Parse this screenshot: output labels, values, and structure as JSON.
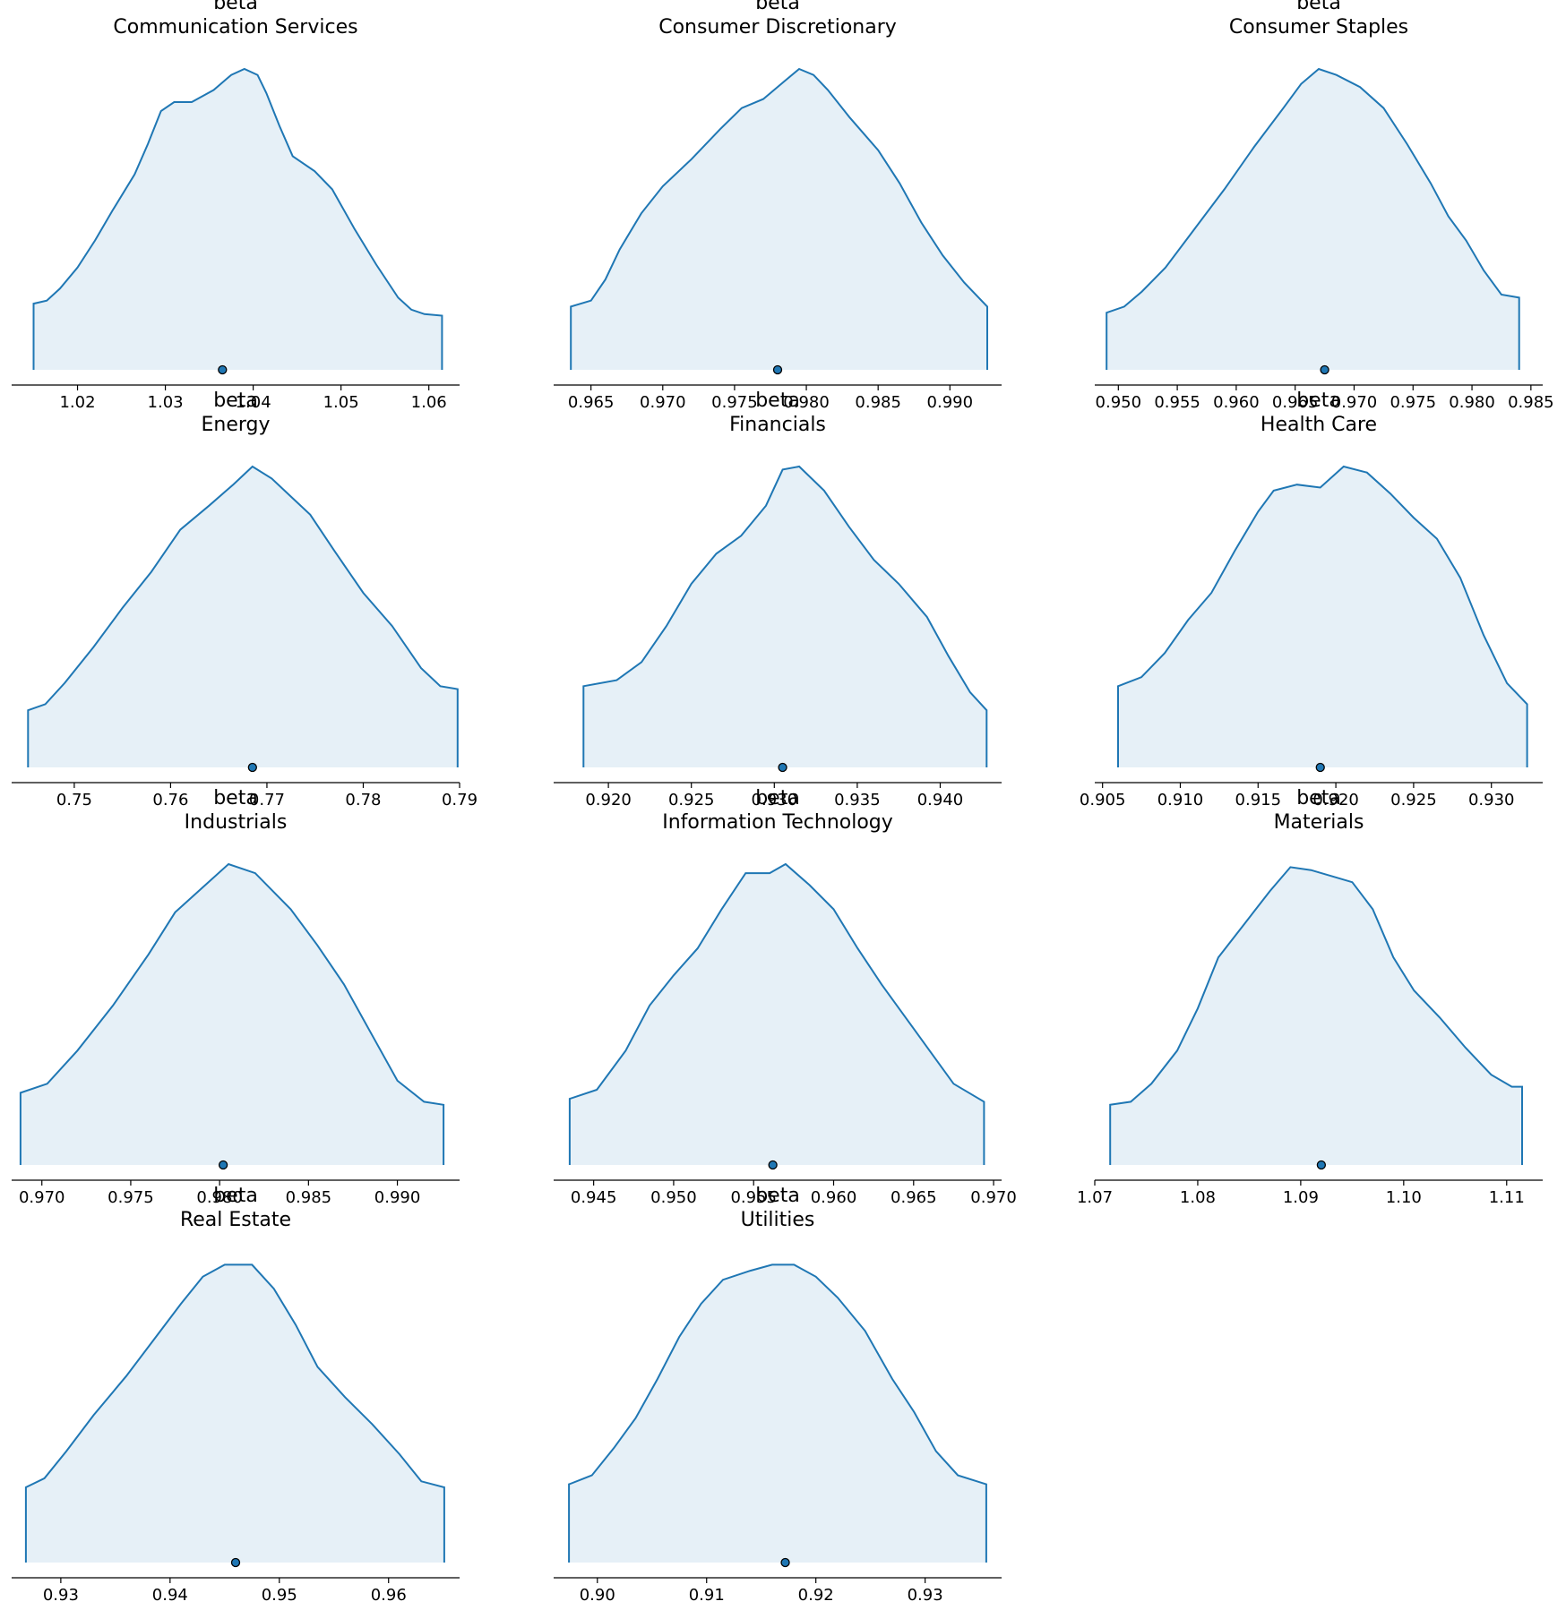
{
  "chart_data": [
    {
      "type": "area",
      "title_line1": "beta",
      "title_line2": "Communication Services",
      "xlim": [
        1.0125,
        1.0635
      ],
      "ticks": [
        1.02,
        1.03,
        1.04,
        1.05,
        1.06
      ],
      "tick_labels": [
        "1.02",
        "1.03",
        "1.04",
        "1.05",
        "1.06"
      ],
      "range": [
        1.015,
        1.0615
      ],
      "mean": 1.0365,
      "x": [
        1.015,
        1.0165,
        1.018,
        1.02,
        1.022,
        1.024,
        1.0265,
        1.028,
        1.0295,
        1.031,
        1.033,
        1.0355,
        1.0375,
        1.039,
        1.0405,
        1.0415,
        1.043,
        1.0445,
        1.047,
        1.049,
        1.0515,
        1.054,
        1.0565,
        1.058,
        1.0595,
        1.0615
      ],
      "y": [
        0.22,
        0.23,
        0.27,
        0.34,
        0.43,
        0.53,
        0.65,
        0.75,
        0.86,
        0.89,
        0.89,
        0.93,
        0.98,
        1.0,
        0.98,
        0.92,
        0.81,
        0.71,
        0.66,
        0.6,
        0.47,
        0.35,
        0.24,
        0.2,
        0.185,
        0.18
      ]
    },
    {
      "type": "area",
      "title_line1": "beta",
      "title_line2": "Consumer Discretionary",
      "xlim": [
        0.9624,
        0.9936
      ],
      "ticks": [
        0.965,
        0.97,
        0.975,
        0.98,
        0.985,
        0.99
      ],
      "tick_labels": [
        "0.965",
        "0.970",
        "0.975",
        "0.980",
        "0.985",
        "0.990"
      ],
      "range": [
        0.9636,
        0.9926
      ],
      "mean": 0.978,
      "x": [
        0.9636,
        0.965,
        0.966,
        0.967,
        0.9685,
        0.97,
        0.972,
        0.974,
        0.9755,
        0.977,
        0.9785,
        0.9795,
        0.9805,
        0.9815,
        0.983,
        0.985,
        0.9865,
        0.988,
        0.9895,
        0.991,
        0.9926
      ],
      "y": [
        0.21,
        0.23,
        0.3,
        0.4,
        0.52,
        0.61,
        0.7,
        0.8,
        0.87,
        0.9,
        0.96,
        1.0,
        0.98,
        0.93,
        0.84,
        0.73,
        0.62,
        0.49,
        0.38,
        0.29,
        0.21
      ]
    },
    {
      "type": "area",
      "title_line1": "beta",
      "title_line2": "Consumer Staples",
      "xlim": [
        0.948,
        0.986
      ],
      "ticks": [
        0.95,
        0.955,
        0.96,
        0.965,
        0.97,
        0.975,
        0.98,
        0.985
      ],
      "tick_labels": [
        "0.950",
        "0.955",
        "0.960",
        "0.965",
        "0.970",
        "0.975",
        "0.980",
        "0.985"
      ],
      "range": [
        0.949,
        0.984
      ],
      "mean": 0.9675,
      "x": [
        0.949,
        0.9505,
        0.952,
        0.954,
        0.9565,
        0.959,
        0.9615,
        0.964,
        0.9655,
        0.967,
        0.9685,
        0.9705,
        0.9725,
        0.9745,
        0.9765,
        0.978,
        0.9795,
        0.981,
        0.9825,
        0.984
      ],
      "y": [
        0.19,
        0.21,
        0.26,
        0.34,
        0.47,
        0.6,
        0.74,
        0.87,
        0.95,
        1.0,
        0.98,
        0.94,
        0.87,
        0.75,
        0.62,
        0.51,
        0.43,
        0.33,
        0.25,
        0.24
      ]
    },
    {
      "type": "area",
      "title_line1": "beta",
      "title_line2": "Energy",
      "xlim": [
        0.7435,
        0.79
      ],
      "ticks": [
        0.75,
        0.76,
        0.77,
        0.78,
        0.79
      ],
      "tick_labels": [
        "0.75",
        "0.76",
        "0.77",
        "0.78",
        "0.79"
      ],
      "range": [
        0.7452,
        0.7898
      ],
      "mean": 0.7685,
      "x": [
        0.7452,
        0.747,
        0.749,
        0.752,
        0.755,
        0.758,
        0.761,
        0.764,
        0.7665,
        0.7685,
        0.7705,
        0.7725,
        0.7745,
        0.777,
        0.78,
        0.783,
        0.786,
        0.788,
        0.7898
      ],
      "y": [
        0.19,
        0.21,
        0.28,
        0.4,
        0.53,
        0.65,
        0.79,
        0.87,
        0.94,
        1.0,
        0.96,
        0.9,
        0.84,
        0.72,
        0.58,
        0.47,
        0.33,
        0.27,
        0.26
      ]
    },
    {
      "type": "area",
      "title_line1": "beta",
      "title_line2": "Financials",
      "xlim": [
        0.9167,
        0.9437
      ],
      "ticks": [
        0.92,
        0.925,
        0.93,
        0.935,
        0.94
      ],
      "tick_labels": [
        "0.920",
        "0.925",
        "0.930",
        "0.935",
        "0.940"
      ],
      "range": [
        0.9185,
        0.9428
      ],
      "mean": 0.9305,
      "x": [
        0.9185,
        0.9205,
        0.922,
        0.9235,
        0.925,
        0.9265,
        0.928,
        0.9295,
        0.9305,
        0.9315,
        0.933,
        0.9345,
        0.936,
        0.9375,
        0.9392,
        0.9405,
        0.9418,
        0.9428
      ],
      "y": [
        0.27,
        0.29,
        0.35,
        0.47,
        0.61,
        0.71,
        0.77,
        0.87,
        0.99,
        1.0,
        0.92,
        0.8,
        0.69,
        0.61,
        0.5,
        0.37,
        0.25,
        0.19
      ]
    },
    {
      "type": "area",
      "title_line1": "beta",
      "title_line2": "Health Care",
      "xlim": [
        0.9045,
        0.9333
      ],
      "ticks": [
        0.905,
        0.91,
        0.915,
        0.92,
        0.925,
        0.93
      ],
      "tick_labels": [
        "0.905",
        "0.910",
        "0.915",
        "0.920",
        "0.925",
        "0.930"
      ],
      "range": [
        0.906,
        0.9323
      ],
      "mean": 0.919,
      "x": [
        0.906,
        0.9075,
        0.909,
        0.9105,
        0.912,
        0.9135,
        0.915,
        0.916,
        0.9175,
        0.919,
        0.9205,
        0.922,
        0.9235,
        0.925,
        0.9265,
        0.928,
        0.9295,
        0.931,
        0.9323
      ],
      "y": [
        0.27,
        0.3,
        0.38,
        0.49,
        0.58,
        0.72,
        0.85,
        0.92,
        0.94,
        0.93,
        1.0,
        0.98,
        0.91,
        0.83,
        0.76,
        0.63,
        0.44,
        0.28,
        0.21
      ]
    },
    {
      "type": "area",
      "title_line1": "beta",
      "title_line2": "Industrials",
      "xlim": [
        0.9683,
        0.9935
      ],
      "ticks": [
        0.97,
        0.975,
        0.98,
        0.985,
        0.99
      ],
      "tick_labels": [
        "0.970",
        "0.975",
        "0.980",
        "0.985",
        "0.990"
      ],
      "range": [
        0.9688,
        0.9926
      ],
      "mean": 0.9802,
      "x": [
        0.9688,
        0.9703,
        0.972,
        0.974,
        0.976,
        0.9775,
        0.979,
        0.9805,
        0.982,
        0.984,
        0.9855,
        0.987,
        0.9885,
        0.99,
        0.9915,
        0.9926
      ],
      "y": [
        0.24,
        0.27,
        0.38,
        0.53,
        0.7,
        0.84,
        0.92,
        1.0,
        0.97,
        0.85,
        0.73,
        0.6,
        0.44,
        0.28,
        0.21,
        0.2
      ]
    },
    {
      "type": "area",
      "title_line1": "beta",
      "title_line2": "Information Technology",
      "xlim": [
        0.9425,
        0.9705
      ],
      "ticks": [
        0.945,
        0.95,
        0.955,
        0.96,
        0.965,
        0.97
      ],
      "tick_labels": [
        "0.945",
        "0.950",
        "0.955",
        "0.960",
        "0.965",
        "0.970"
      ],
      "range": [
        0.9435,
        0.9694
      ],
      "mean": 0.9562,
      "x": [
        0.9435,
        0.9452,
        0.947,
        0.9485,
        0.95,
        0.9515,
        0.953,
        0.9545,
        0.956,
        0.957,
        0.9585,
        0.96,
        0.9615,
        0.963,
        0.9645,
        0.966,
        0.9675,
        0.9694
      ],
      "y": [
        0.22,
        0.25,
        0.38,
        0.53,
        0.63,
        0.72,
        0.85,
        0.97,
        0.97,
        1.0,
        0.93,
        0.85,
        0.72,
        0.6,
        0.49,
        0.38,
        0.27,
        0.21
      ]
    },
    {
      "type": "area",
      "title_line1": "beta",
      "title_line2": "Materials",
      "xlim": [
        1.07,
        1.1135
      ],
      "ticks": [
        1.07,
        1.08,
        1.09,
        1.1,
        1.11
      ],
      "tick_labels": [
        "1.07",
        "1.08",
        "1.09",
        "1.10",
        "1.11"
      ],
      "range": [
        1.0715,
        1.1115
      ],
      "mean": 1.092,
      "x": [
        1.0715,
        1.0735,
        1.0755,
        1.078,
        1.08,
        1.082,
        1.0845,
        1.087,
        1.089,
        1.091,
        1.093,
        1.095,
        1.097,
        1.099,
        1.101,
        1.1035,
        1.106,
        1.1085,
        1.1105,
        1.1115
      ],
      "y": [
        0.2,
        0.21,
        0.27,
        0.38,
        0.52,
        0.69,
        0.8,
        0.91,
        0.99,
        0.98,
        0.96,
        0.94,
        0.85,
        0.69,
        0.58,
        0.49,
        0.39,
        0.3,
        0.26,
        0.26
      ]
    },
    {
      "type": "area",
      "title_line1": "beta",
      "title_line2": "Real Estate",
      "xlim": [
        0.9255,
        0.9665
      ],
      "ticks": [
        0.93,
        0.94,
        0.95,
        0.96
      ],
      "tick_labels": [
        "0.93",
        "0.94",
        "0.95",
        "0.96"
      ],
      "range": [
        0.9268,
        0.9651
      ],
      "mean": 0.946,
      "x": [
        0.9268,
        0.9285,
        0.9305,
        0.933,
        0.936,
        0.9385,
        0.941,
        0.943,
        0.945,
        0.9475,
        0.9495,
        0.9515,
        0.9535,
        0.956,
        0.9585,
        0.961,
        0.963,
        0.9651
      ],
      "y": [
        0.25,
        0.28,
        0.37,
        0.49,
        0.62,
        0.74,
        0.86,
        0.95,
        0.99,
        0.99,
        0.91,
        0.79,
        0.65,
        0.55,
        0.46,
        0.36,
        0.27,
        0.25
      ]
    },
    {
      "type": "area",
      "title_line1": "beta",
      "title_line2": "Utilities",
      "xlim": [
        0.896,
        0.937
      ],
      "ticks": [
        0.9,
        0.91,
        0.92,
        0.93
      ],
      "tick_labels": [
        "0.90",
        "0.91",
        "0.92",
        "0.93"
      ],
      "range": [
        0.8974,
        0.9356
      ],
      "mean": 0.9172,
      "x": [
        0.8974,
        0.8995,
        0.9015,
        0.9035,
        0.9055,
        0.9075,
        0.9095,
        0.9115,
        0.914,
        0.916,
        0.918,
        0.92,
        0.922,
        0.9245,
        0.927,
        0.929,
        0.931,
        0.933,
        0.9356
      ],
      "y": [
        0.26,
        0.29,
        0.38,
        0.48,
        0.61,
        0.75,
        0.86,
        0.94,
        0.97,
        0.99,
        0.99,
        0.95,
        0.88,
        0.77,
        0.61,
        0.5,
        0.37,
        0.29,
        0.26
      ]
    }
  ]
}
